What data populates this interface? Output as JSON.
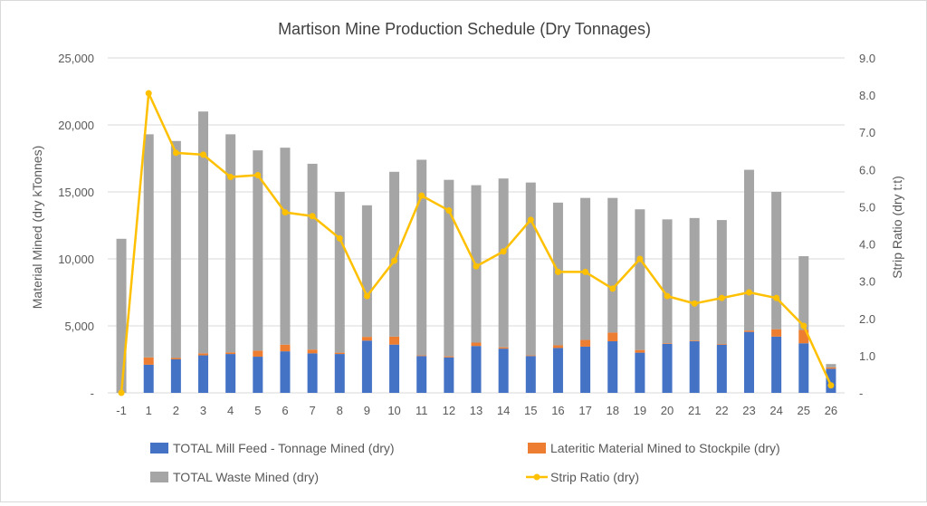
{
  "chart_data": {
    "type": "bar",
    "title": "Martison Mine Production Schedule (Dry Tonnages)",
    "ylabel": "Material Mined (dry kTonnes)",
    "y2label": "Strip Ratio (dry t:t)",
    "categories": [
      "-1",
      "1",
      "2",
      "3",
      "4",
      "5",
      "6",
      "7",
      "8",
      "9",
      "10",
      "11",
      "12",
      "13",
      "14",
      "15",
      "16",
      "17",
      "18",
      "19",
      "20",
      "21",
      "22",
      "23",
      "24",
      "25",
      "26"
    ],
    "ylim": [
      0,
      25000
    ],
    "y2lim": [
      0,
      9
    ],
    "yticks": [
      "-",
      "5,000",
      "10,000",
      "15,000",
      "20,000",
      "25,000"
    ],
    "y2ticks": [
      "-",
      "1.0",
      "2.0",
      "3.0",
      "4.0",
      "5.0",
      "6.0",
      "7.0",
      "8.0",
      "9.0"
    ],
    "stacked": true,
    "grid": true,
    "legend_position": "bottom",
    "series": [
      {
        "name": "TOTAL Mill Feed - Tonnage Mined (dry)",
        "type": "bar",
        "axis": "left",
        "color": "#4472c4",
        "values": [
          0,
          2100,
          2500,
          2800,
          2900,
          2700,
          3100,
          2950,
          2900,
          3900,
          3600,
          2750,
          2650,
          3500,
          3300,
          2750,
          3350,
          3450,
          3850,
          3000,
          3650,
          3850,
          3600,
          4550,
          4200,
          3700,
          1800
        ]
      },
      {
        "name": "Lateritic Material Mined to Stockpile (dry)",
        "type": "bar",
        "axis": "left",
        "color": "#ed7d31",
        "values": [
          0,
          550,
          100,
          150,
          120,
          450,
          500,
          280,
          100,
          280,
          600,
          50,
          80,
          250,
          100,
          50,
          200,
          500,
          650,
          200,
          50,
          50,
          50,
          100,
          550,
          1000,
          100
        ]
      },
      {
        "name": "TOTAL Waste Mined (dry)",
        "type": "bar",
        "axis": "left",
        "color": "#a5a5a5",
        "values": [
          11500,
          16650,
          16200,
          18050,
          16280,
          14950,
          14700,
          13870,
          12000,
          9820,
          12300,
          14600,
          13170,
          11750,
          12600,
          12900,
          10650,
          10600,
          10050,
          10500,
          9250,
          9150,
          9250,
          12000,
          10250,
          5500,
          250
        ]
      },
      {
        "name": "Strip Ratio (dry)",
        "type": "line",
        "axis": "right",
        "color": "#ffc000",
        "values": [
          0,
          8.05,
          6.45,
          6.4,
          5.8,
          5.85,
          4.85,
          4.75,
          4.15,
          2.6,
          3.55,
          5.3,
          4.9,
          3.4,
          3.8,
          4.65,
          3.25,
          3.25,
          2.8,
          3.6,
          2.6,
          2.4,
          2.55,
          2.7,
          2.55,
          1.8,
          0.2
        ]
      }
    ]
  }
}
